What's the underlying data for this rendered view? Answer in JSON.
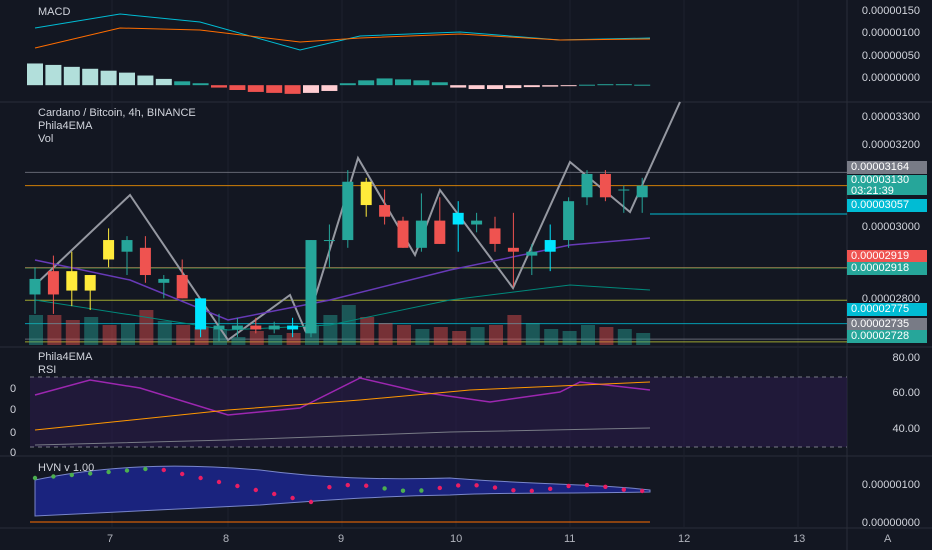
{
  "instrument": {
    "title": "Cardano / Bitcoin, 4h, BINANCE",
    "indicator_1": "Phila4EMA",
    "indicator_2": "Vol"
  },
  "macd_panel": {
    "label": "MACD",
    "ticks": [
      "0.00000150",
      "0.00000100",
      "0.00000050",
      "0.00000000"
    ]
  },
  "rsi_panel": {
    "label_1": "Phila4EMA",
    "label_2": "RSI",
    "ticks": [
      "80.00",
      "60.00",
      "40.00"
    ],
    "left_values": [
      "0",
      "0",
      "0",
      "0"
    ]
  },
  "hvn_panel": {
    "label": "HVN v 1.00",
    "ticks": [
      "0.00000100",
      "0.00000000"
    ]
  },
  "price_axis": {
    "ticks": [
      "0.00003300",
      "0.00003200",
      "0.00003000",
      "0.00002800"
    ]
  },
  "price_badges": [
    {
      "value": "0.00003164",
      "color": "#787b86"
    },
    {
      "value": "0.00003130",
      "color": "#26a69a"
    },
    {
      "value": "03:21:39",
      "color": "#26a69a"
    },
    {
      "value": "0.00003057",
      "color": "#00bcd4"
    },
    {
      "value": "0.00002919",
      "color": "#ef5350"
    },
    {
      "value": "0.00002918",
      "color": "#26a69a"
    },
    {
      "value": "0.00002775",
      "color": "#00bcd4"
    },
    {
      "value": "0.00002735",
      "color": "#787b86"
    },
    {
      "value": "0.00002728",
      "color": "#26a69a"
    }
  ],
  "time_axis": {
    "ticks": [
      "7",
      "8",
      "9",
      "10",
      "11",
      "12",
      "13"
    ],
    "corner_label": "A"
  },
  "colors": {
    "up": "#26a69a",
    "down": "#ef5350",
    "highlight": "#ffeb3b",
    "bg": "#131722"
  },
  "chart_data": [
    {
      "type": "candlestick",
      "title": "Cardano / Bitcoin, 4h, BINANCE",
      "ylim": [
        2.72e-05,
        3.34e-05
      ],
      "series": [
        {
          "o": 2.85e-05,
          "h": 2.92e-05,
          "l": 2.8e-05,
          "c": 2.89e-05
        },
        {
          "o": 2.91e-05,
          "h": 2.95e-05,
          "l": 2.8e-05,
          "c": 2.85e-05
        },
        {
          "o": 2.91e-05,
          "h": 2.96e-05,
          "l": 2.82e-05,
          "c": 2.86e-05
        },
        {
          "o": 2.86e-05,
          "h": 2.9e-05,
          "l": 2.81e-05,
          "c": 2.9e-05
        },
        {
          "o": 2.99e-05,
          "h": 3.02e-05,
          "l": 2.92e-05,
          "c": 2.94e-05
        },
        {
          "o": 2.96e-05,
          "h": 3e-05,
          "l": 2.9e-05,
          "c": 2.99e-05
        },
        {
          "o": 2.97e-05,
          "h": 3e-05,
          "l": 2.88e-05,
          "c": 2.9e-05
        },
        {
          "o": 2.88e-05,
          "h": 2.9e-05,
          "l": 2.84e-05,
          "c": 2.89e-05
        },
        {
          "o": 2.9e-05,
          "h": 2.94e-05,
          "l": 2.84e-05,
          "c": 2.84e-05
        },
        {
          "o": 2.84e-05,
          "h": 2.84e-05,
          "l": 2.74e-05,
          "c": 2.76e-05
        },
        {
          "o": 2.76e-05,
          "h": 2.8e-05,
          "l": 2.73e-05,
          "c": 2.77e-05
        },
        {
          "o": 2.76e-05,
          "h": 2.79e-05,
          "l": 2.74e-05,
          "c": 2.77e-05
        },
        {
          "o": 2.77e-05,
          "h": 2.79e-05,
          "l": 2.75e-05,
          "c": 2.76e-05
        },
        {
          "o": 2.76e-05,
          "h": 2.78e-05,
          "l": 2.75e-05,
          "c": 2.77e-05
        },
        {
          "o": 2.77e-05,
          "h": 2.79e-05,
          "l": 2.74e-05,
          "c": 2.76e-05
        },
        {
          "o": 2.75e-05,
          "h": 2.99e-05,
          "l": 2.74e-05,
          "c": 2.99e-05
        },
        {
          "o": 2.99e-05,
          "h": 3.03e-05,
          "l": 2.92e-05,
          "c": 2.99e-05
        },
        {
          "o": 2.99e-05,
          "h": 3.17e-05,
          "l": 2.97e-05,
          "c": 3.14e-05
        },
        {
          "o": 3.14e-05,
          "h": 3.15e-05,
          "l": 3.05e-05,
          "c": 3.08e-05
        },
        {
          "o": 3.08e-05,
          "h": 3.12e-05,
          "l": 3.03e-05,
          "c": 3.05e-05
        },
        {
          "o": 3.04e-05,
          "h": 3.05e-05,
          "l": 2.97e-05,
          "c": 2.97e-05
        },
        {
          "o": 2.97e-05,
          "h": 3.11e-05,
          "l": 2.96e-05,
          "c": 3.04e-05
        },
        {
          "o": 3.04e-05,
          "h": 3.1e-05,
          "l": 2.98e-05,
          "c": 2.98e-05
        },
        {
          "o": 3.06e-05,
          "h": 3.09e-05,
          "l": 2.96e-05,
          "c": 3.03e-05
        },
        {
          "o": 3.03e-05,
          "h": 3.06e-05,
          "l": 3.01e-05,
          "c": 3.04e-05
        },
        {
          "o": 3.02e-05,
          "h": 3.05e-05,
          "l": 2.96e-05,
          "c": 2.98e-05
        },
        {
          "o": 2.97e-05,
          "h": 3.06e-05,
          "l": 2.87e-05,
          "c": 2.96e-05
        },
        {
          "o": 2.95e-05,
          "h": 2.98e-05,
          "l": 2.9e-05,
          "c": 2.96e-05
        },
        {
          "o": 2.96e-05,
          "h": 3.03e-05,
          "l": 2.91e-05,
          "c": 2.99e-05
        },
        {
          "o": 2.99e-05,
          "h": 3.1e-05,
          "l": 2.97e-05,
          "c": 3.09e-05
        },
        {
          "o": 3.1e-05,
          "h": 3.17e-05,
          "l": 3.08e-05,
          "c": 3.16e-05
        },
        {
          "o": 3.16e-05,
          "h": 3.17e-05,
          "l": 3.09e-05,
          "c": 3.1e-05
        },
        {
          "o": 3.12e-05,
          "h": 3.13e-05,
          "l": 3.06e-05,
          "c": 3.12e-05
        },
        {
          "o": 3.1e-05,
          "h": 3.15e-05,
          "l": 3.06e-05,
          "c": 3.13e-05
        }
      ]
    },
    {
      "type": "bar",
      "title": "MACD",
      "ylim": [
        -1e-07,
        1.6e-06
      ],
      "values": [
        4.5e-07,
        4.2e-07,
        3.8e-07,
        3.4e-07,
        3e-07,
        2.6e-07,
        2e-07,
        1.3e-07,
        8e-08,
        4e-08,
        -5e-08,
        -1e-07,
        -1.4e-07,
        -1.6e-07,
        -1.8e-07,
        -1.6e-07,
        -1.2e-07,
        4e-08,
        1e-07,
        1.4e-07,
        1.2e-07,
        1e-07,
        6e-08,
        -5e-08,
        -8e-08,
        -8e-08,
        -6e-08,
        -4e-08,
        -3e-08,
        -2e-08,
        1e-08,
        2e-08,
        2e-08,
        1e-08
      ]
    }
  ]
}
